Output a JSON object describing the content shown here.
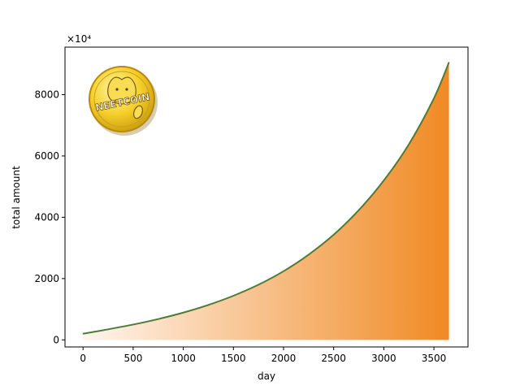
{
  "chart_data": {
    "type": "area",
    "xlabel": "day",
    "ylabel": "total amount",
    "offset_text": "×10⁴",
    "xlim": [
      -180,
      3840
    ],
    "ylim": [
      -230,
      9550
    ],
    "xticks": [
      0,
      500,
      1000,
      1500,
      2000,
      2500,
      3000,
      3500
    ],
    "yticks": [
      0,
      2000,
      4000,
      6000,
      8000
    ],
    "grid": false,
    "legend": "none",
    "line_color": "#4f7a3a",
    "fill_gradient": [
      "#fff5ee",
      "#f08a24"
    ],
    "logo": {
      "text": "NEETCOIN"
    },
    "series": [
      {
        "x": [
          0,
          250,
          500,
          750,
          1000,
          1250,
          1500,
          1750,
          2000,
          2250,
          2500,
          2750,
          3000,
          3250,
          3500,
          3650
        ],
        "values": [
          200,
          345,
          500,
          680,
          890,
          1140,
          1440,
          1800,
          2240,
          2780,
          3430,
          4230,
          5200,
          6380,
          7880,
          9050
        ]
      }
    ]
  }
}
